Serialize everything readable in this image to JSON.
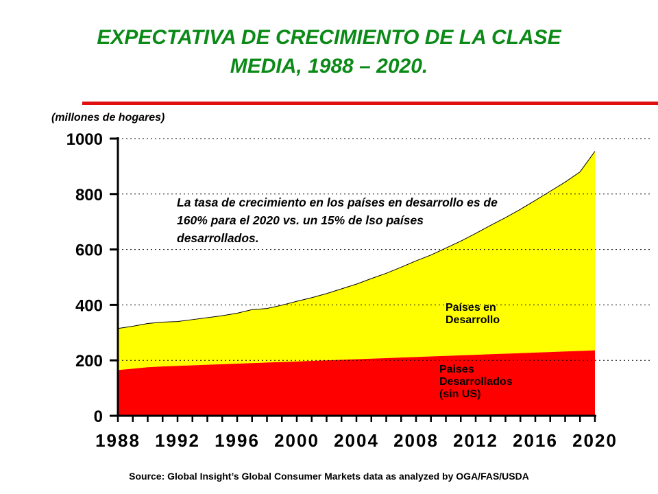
{
  "title_line1": "EXPECTATIVA DE CRECIMIENTO DE LA CLASE",
  "title_line2": "MEDIA, 1988 – 2020.",
  "unit_label": "(millones de hogares)",
  "annotation": "La tasa de crecimiento en los países en desarrollo es de 160% para el 2020 vs. un 15% de lso países desarrollados.",
  "source": "Source: Global Insight’s Global Consumer Markets data as analyzed by OGA/FAS/USDA",
  "colors": {
    "title": "#0b8a17",
    "developing": "#ffff00",
    "developed": "#ff0000",
    "rule": "#e01010"
  },
  "chart_data": {
    "type": "area",
    "stacked": true,
    "x": [
      1988,
      1989,
      1990,
      1991,
      1992,
      1993,
      1994,
      1995,
      1996,
      1997,
      1998,
      1999,
      2000,
      2001,
      2002,
      2003,
      2004,
      2005,
      2006,
      2007,
      2008,
      2009,
      2010,
      2011,
      2012,
      2013,
      2014,
      2015,
      2016,
      2017,
      2018,
      2019,
      2020
    ],
    "xticks": [
      1988,
      1992,
      1996,
      2000,
      2004,
      2008,
      2012,
      2016,
      2020
    ],
    "yticks": [
      0,
      200,
      400,
      600,
      800,
      1000
    ],
    "ylim": [
      0,
      1000
    ],
    "grid": "horizontal dotted",
    "series": [
      {
        "name": "Países Desarrollados (sin US)",
        "label_lines": [
          "Paises",
          "Desarrollados",
          "(sin US)"
        ],
        "values": [
          165,
          170,
          175,
          178,
          180,
          182,
          184,
          186,
          188,
          190,
          192,
          194,
          196,
          198,
          200,
          202,
          204,
          206,
          208,
          210,
          212,
          214,
          216,
          218,
          220,
          222,
          224,
          226,
          228,
          230,
          232,
          234,
          236
        ]
      },
      {
        "name": "Países en Desarrollo",
        "label_lines": [
          "Países en",
          "Desarrollo"
        ],
        "values": [
          150,
          153,
          158,
          160,
          160,
          165,
          170,
          175,
          182,
          193,
          195,
          205,
          217,
          228,
          241,
          256,
          271,
          289,
          306,
          326,
          347,
          366,
          389,
          412,
          438,
          465,
          491,
          519,
          549,
          580,
          611,
          646,
          718
        ]
      }
    ],
    "totals": [
      315,
      323,
      333,
      338,
      340,
      347,
      354,
      361,
      370,
      383,
      387,
      399,
      413,
      426,
      441,
      458,
      475,
      495,
      514,
      536,
      559,
      580,
      605,
      630,
      658,
      687,
      715,
      745,
      777,
      810,
      843,
      880,
      954
    ]
  }
}
